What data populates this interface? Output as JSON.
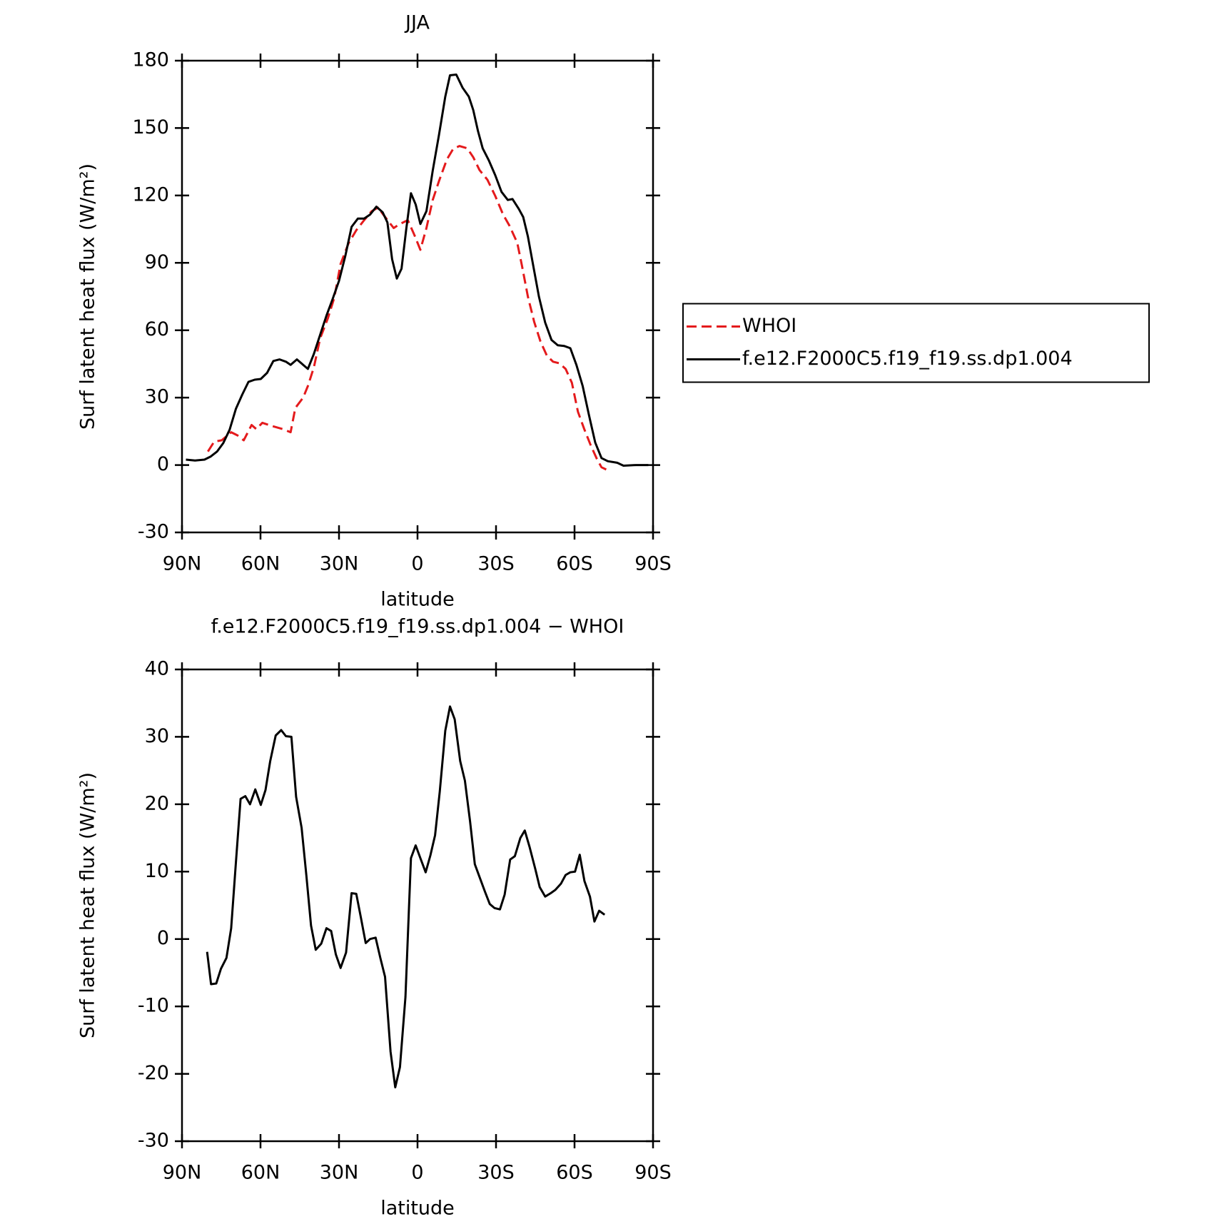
{
  "chart_data": [
    {
      "type": "line",
      "title": "JJA",
      "x_label": "latitude",
      "y_label": "Surf latent heat flux (W/m²)",
      "xlim": [
        90,
        -90
      ],
      "xticks": [
        {
          "value": 90,
          "label": "90N"
        },
        {
          "value": 60,
          "label": "60N"
        },
        {
          "value": 30,
          "label": "30N"
        },
        0,
        {
          "value": -30,
          "label": "30S"
        },
        {
          "value": -60,
          "label": "60S"
        },
        {
          "value": -90,
          "label": "90S"
        }
      ],
      "ylim": [
        -30,
        180
      ],
      "yticks": [
        -30,
        0,
        30,
        60,
        90,
        120,
        150,
        180
      ],
      "legend": "right",
      "series": [
        {
          "name": "WHOI",
          "color": "#e41a1c",
          "dashed": true,
          "x": [
            80.1,
            77.7,
            74.8,
            71.2,
            68.8,
            66.4,
            63.4,
            61.6,
            59.3,
            55.7,
            51.5,
            48.5,
            46.7,
            43.7,
            41.9,
            39.6,
            37.2,
            34.2,
            31.8,
            29.4,
            26.4,
            23.4,
            20.4,
            17.5,
            15.1,
            12.1,
            9.1,
            6.7,
            3.7,
            1.3,
            -1.1,
            -3.4,
            -5.8,
            -8.2,
            -11.2,
            -13.6,
            -16,
            -19,
            -21.3,
            -23.7,
            -26.7,
            -29.7,
            -32.7,
            -35.1,
            -38.1,
            -39.9,
            -42.2,
            -44.6,
            -47,
            -49.4,
            -51.8,
            -54.2,
            -56.6,
            -59,
            -61.3,
            -63.7,
            -66.1,
            -68.5,
            -70.3,
            -72.1
          ],
          "values": [
            6,
            10.4,
            11,
            14.6,
            13.2,
            11,
            17.8,
            16,
            18.8,
            17.4,
            16,
            14.6,
            25.4,
            30,
            35.2,
            43.5,
            56.4,
            65.5,
            74.5,
            89.5,
            98.6,
            104.5,
            109,
            113,
            114.6,
            110,
            105.5,
            107.3,
            109,
            102.7,
            95.8,
            105.5,
            118,
            126.4,
            136,
            140.7,
            142,
            141,
            137,
            131.3,
            127,
            119.8,
            111.5,
            106.6,
            99,
            88.8,
            74.9,
            63.7,
            55,
            48.8,
            46,
            45.3,
            42.8,
            36.6,
            23.7,
            16,
            9,
            2.8,
            -1,
            -2
          ]
        },
        {
          "name": "f.e12.F2000C5.f19_f19.ss.dp1.004",
          "color": "#000000",
          "dashed": false,
          "x": [
            88.5,
            85,
            81.4,
            79,
            76.6,
            74.2,
            71.8,
            69.4,
            67,
            64.6,
            62.2,
            59.9,
            57.5,
            55.1,
            52.7,
            50.3,
            48.5,
            46.1,
            43.7,
            41.9,
            39.6,
            37.2,
            34.8,
            32.4,
            30,
            27.6,
            25.2,
            22.8,
            20.4,
            18.1,
            15.7,
            13.3,
            11.5,
            9.7,
            7.9,
            6.1,
            4.3,
            2.5,
            0.7,
            -1.1,
            -3.4,
            -5.8,
            -8.2,
            -10.6,
            -12.4,
            -14.8,
            -17.2,
            -19.6,
            -21.3,
            -23.1,
            -24.9,
            -27.3,
            -29.7,
            -32.1,
            -34.5,
            -36.3,
            -38.7,
            -40.4,
            -42.2,
            -44.6,
            -46.4,
            -48.8,
            -51.2,
            -53.6,
            -56,
            -58.4,
            -60.7,
            -63.1,
            -65.5,
            -67.9,
            -70.3,
            -72.7,
            -76.3,
            -78.7,
            -83.4,
            -88.2
          ],
          "values": [
            2.4,
            2,
            2.4,
            3.8,
            6,
            9.8,
            15.7,
            25,
            31.3,
            37,
            38,
            38.3,
            41,
            46.3,
            47,
            46,
            44.6,
            47,
            44.6,
            42.8,
            49.5,
            58,
            66.5,
            74,
            82,
            93,
            106,
            109.7,
            109.7,
            111.5,
            115,
            112.5,
            108,
            91.6,
            83,
            87.4,
            105,
            121,
            116,
            107.3,
            113,
            131,
            147,
            164,
            173.5,
            173.8,
            168,
            164,
            158,
            148.7,
            141,
            135.5,
            129,
            121.6,
            118,
            118.4,
            114,
            110.4,
            101.7,
            86.4,
            75,
            63.4,
            55.7,
            53.3,
            53,
            52,
            44.6,
            35.2,
            22.3,
            10,
            3.1,
            1.7,
            1,
            -0.3,
            0,
            0
          ]
        }
      ]
    },
    {
      "type": "line",
      "title": "f.e12.F2000C5.f19_f19.ss.dp1.004 − WHOI",
      "x_label": "latitude",
      "y_label": "Surf latent heat flux (W/m²)",
      "xlim": [
        90,
        -90
      ],
      "xticks": [
        {
          "value": 90,
          "label": "90N"
        },
        {
          "value": 60,
          "label": "60N"
        },
        {
          "value": 30,
          "label": "30N"
        },
        0,
        {
          "value": -30,
          "label": "30S"
        },
        {
          "value": -60,
          "label": "60S"
        },
        {
          "value": -90,
          "label": "90S"
        }
      ],
      "ylim": [
        -30,
        40
      ],
      "yticks": [
        -30,
        -20,
        -10,
        0,
        10,
        20,
        30,
        40
      ],
      "series": [
        {
          "color": "#000000",
          "dashed": false,
          "x": [
            80.4,
            78.9,
            76.9,
            75.1,
            73,
            71.2,
            69.4,
            67.6,
            65.8,
            64,
            62,
            59.9,
            58.1,
            56.3,
            54.2,
            52.1,
            50.3,
            48.2,
            46.4,
            44.3,
            42.5,
            40.7,
            38.9,
            36.8,
            34.8,
            33,
            31.2,
            29.4,
            27.3,
            25.2,
            23.4,
            21.6,
            19.8,
            18.1,
            16,
            14.2,
            12.4,
            10.3,
            8.5,
            6.7,
            4.6,
            2.5,
            0.7,
            -1.1,
            -3.1,
            -4.9,
            -6.7,
            -8.5,
            -10.6,
            -12.4,
            -14.2,
            -16.3,
            -18.1,
            -20.1,
            -21.9,
            -23.7,
            -25.8,
            -27.6,
            -29.4,
            -31.5,
            -33.3,
            -35.4,
            -37.2,
            -39.3,
            -41,
            -42.8,
            -45,
            -46.7,
            -48.8,
            -50.9,
            -52.7,
            -54.8,
            -56.6,
            -58.4,
            -60.2,
            -62,
            -63.8,
            -65.9,
            -67.6,
            -69.4,
            -71.5
          ],
          "values": [
            -1.9,
            -6.7,
            -6.6,
            -4.4,
            -2.8,
            1.6,
            11.3,
            20.8,
            21.2,
            20,
            22.2,
            19.9,
            22.1,
            26.4,
            30.2,
            31,
            30.1,
            30,
            21.1,
            16.5,
            9.5,
            2,
            -1.6,
            -0.7,
            1.6,
            1.2,
            -2.3,
            -4.3,
            -2,
            6.8,
            6.7,
            3.1,
            -0.6,
            0,
            0.2,
            -2.8,
            -5.6,
            -16.7,
            -22,
            -19,
            -8.6,
            12,
            13.9,
            12,
            9.9,
            12.4,
            15.4,
            21.9,
            30.9,
            34.5,
            32.6,
            26.4,
            23.5,
            17.4,
            11.1,
            9.2,
            7,
            5.2,
            4.6,
            4.4,
            6.6,
            11.8,
            12.3,
            15,
            16.1,
            13.7,
            10.4,
            7.7,
            6.3,
            6.8,
            7.3,
            8.2,
            9.5,
            9.9,
            10,
            12.5,
            8.6,
            6.3,
            2.6,
            4.2,
            3.6
          ]
        }
      ]
    }
  ]
}
